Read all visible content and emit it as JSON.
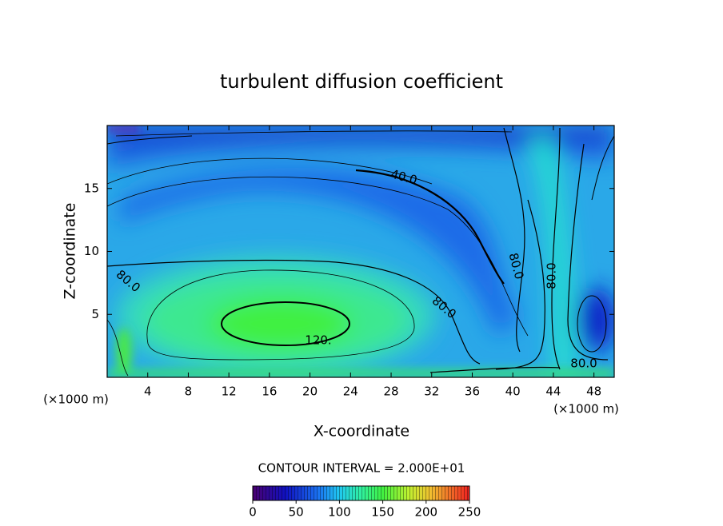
{
  "chart_data": {
    "type": "contour",
    "title": "turbulent diffusion coefficient",
    "x_label": "X-coordinate",
    "y_label": "Z-coordinate",
    "x_unit": "(×1000 m)",
    "y_unit": "(×1000 m)",
    "xlim": [
      0,
      50
    ],
    "xticks": [
      4,
      8,
      12,
      16,
      20,
      24,
      28,
      32,
      36,
      40,
      44,
      48
    ],
    "ylim": [
      0,
      20
    ],
    "yticks": [
      5,
      10,
      15
    ],
    "contour_labels": [
      "80.0",
      "80.0",
      "120.",
      "40.0",
      "80.0",
      "80.0",
      "80.0"
    ],
    "contour_interval": "CONTOUR INTERVAL = 2.000E+01",
    "colorbar": {
      "lim": [
        0,
        250
      ],
      "ticks": [
        0,
        50,
        100,
        150,
        200,
        250
      ]
    }
  }
}
